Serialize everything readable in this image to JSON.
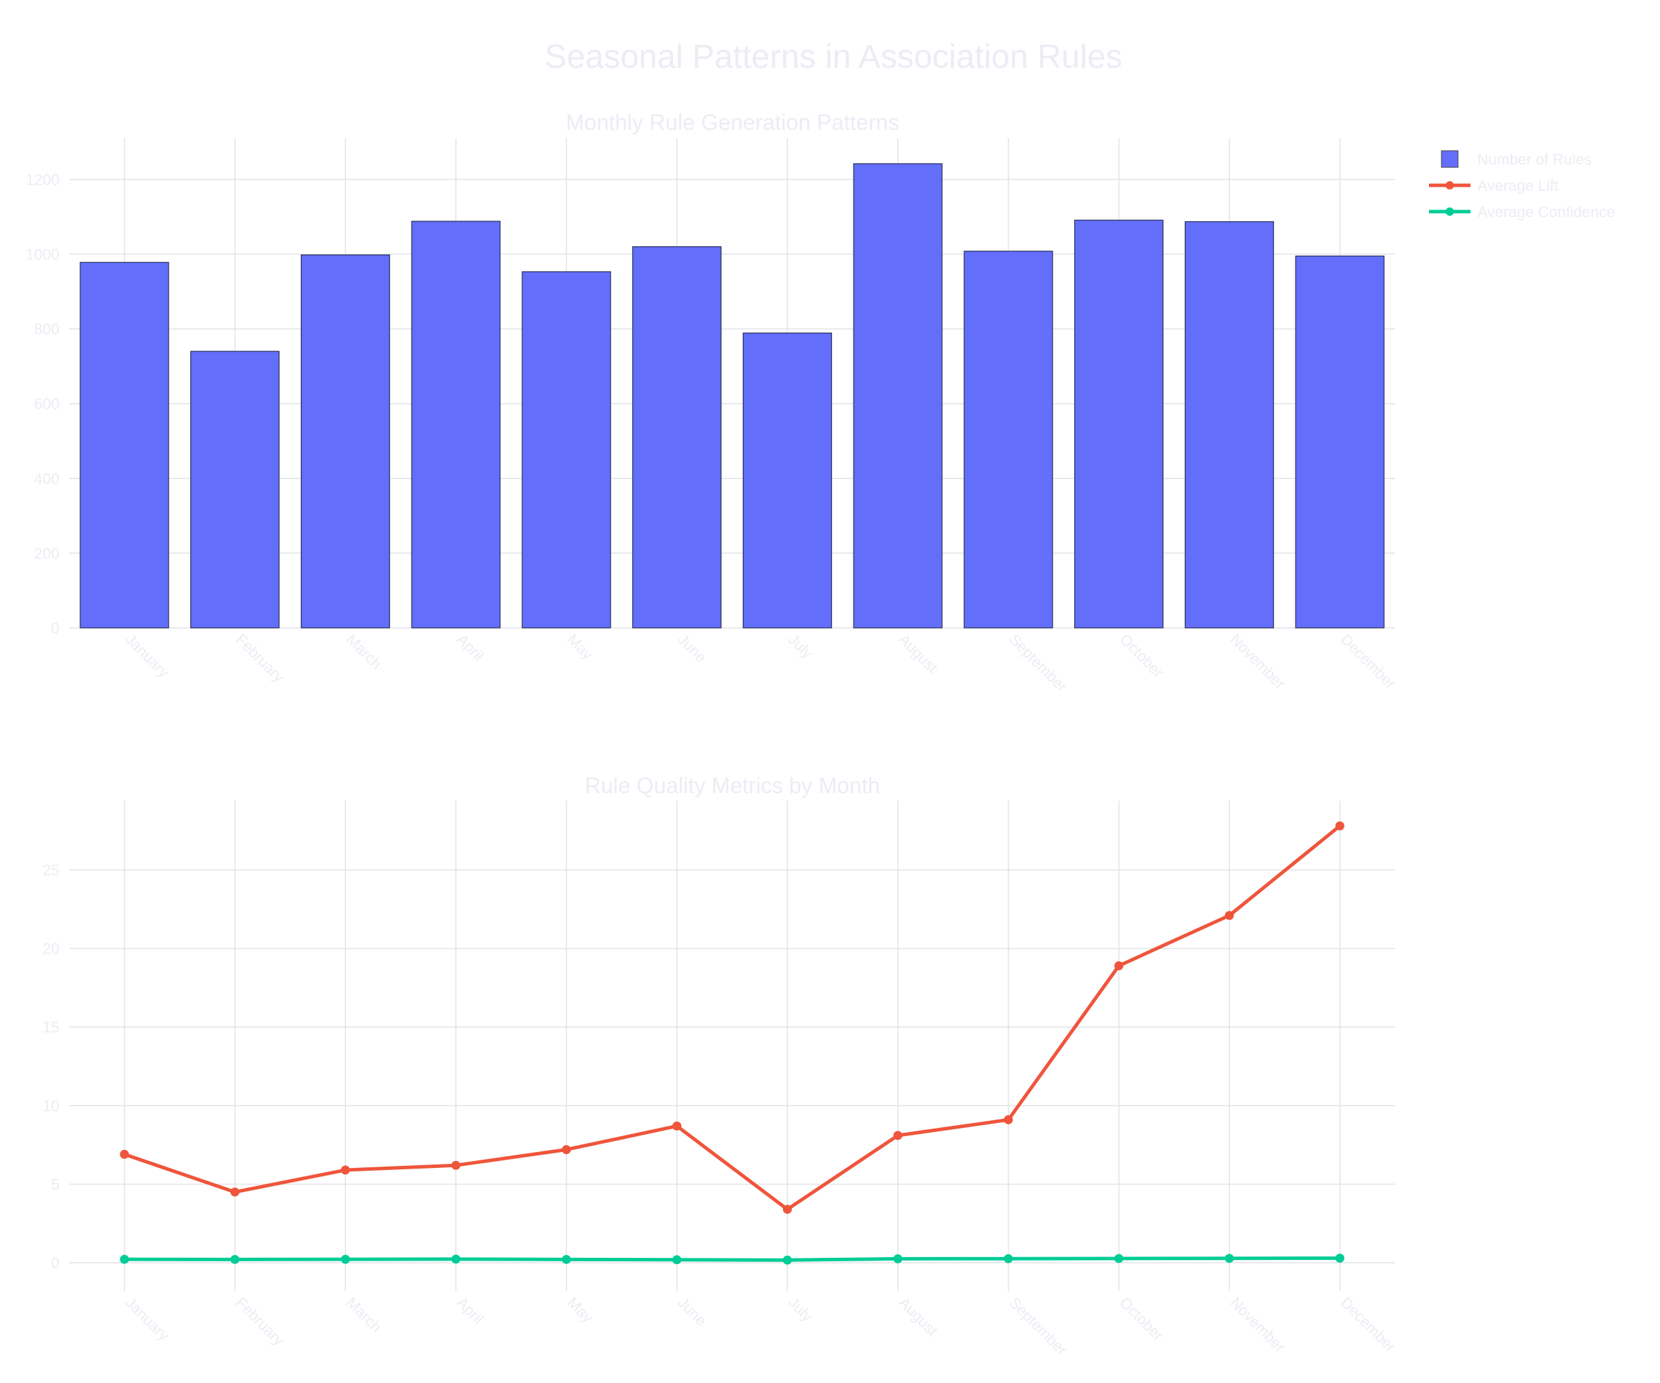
{
  "title": "Seasonal Patterns in Association Rules",
  "colors": {
    "rules": "#636efa",
    "lift": "#ef553b",
    "confidence": "#00cc96",
    "text": "#ecedf4",
    "grid": "#e1e3e8"
  },
  "legend": {
    "placement": "top-right",
    "items": [
      {
        "label": "Number of Rules",
        "marker": "bar",
        "color": "#636efa"
      },
      {
        "label": "Average Lift",
        "marker": "line-marker",
        "color": "#ef553b"
      },
      {
        "label": "Average Confidence",
        "marker": "line-marker",
        "color": "#00cc96"
      }
    ]
  },
  "chart_data": [
    {
      "type": "bar",
      "title": "Monthly Rule Generation Patterns",
      "xlabel": "",
      "ylabel": "",
      "categories": [
        "January",
        "February",
        "March",
        "April",
        "May",
        "June",
        "July",
        "August",
        "September",
        "October",
        "November",
        "December"
      ],
      "series": [
        {
          "name": "Number of Rules",
          "values": [
            978,
            740,
            998,
            1088,
            953,
            1020,
            789,
            1242,
            1008,
            1091,
            1087,
            995
          ]
        }
      ],
      "ylim": [
        0,
        1310
      ],
      "yticks": [
        0,
        200,
        400,
        600,
        800,
        1000,
        1200
      ],
      "grid": true
    },
    {
      "type": "line",
      "title": "Rule Quality Metrics by Month",
      "xlabel": "",
      "ylabel": "",
      "categories": [
        "January",
        "February",
        "March",
        "April",
        "May",
        "June",
        "July",
        "August",
        "September",
        "October",
        "November",
        "December"
      ],
      "series": [
        {
          "name": "Average Lift",
          "values": [
            6.9,
            4.5,
            5.9,
            6.2,
            7.2,
            8.7,
            3.4,
            8.1,
            9.1,
            18.9,
            22.1,
            27.8
          ]
        },
        {
          "name": "Average Confidence",
          "values": [
            0.22,
            0.21,
            0.22,
            0.23,
            0.21,
            0.19,
            0.17,
            0.25,
            0.26,
            0.27,
            0.28,
            0.29
          ]
        }
      ],
      "ylim": [
        -1.8,
        29.4
      ],
      "yticks": [
        0,
        5,
        10,
        15,
        20,
        25
      ],
      "grid": true
    }
  ]
}
